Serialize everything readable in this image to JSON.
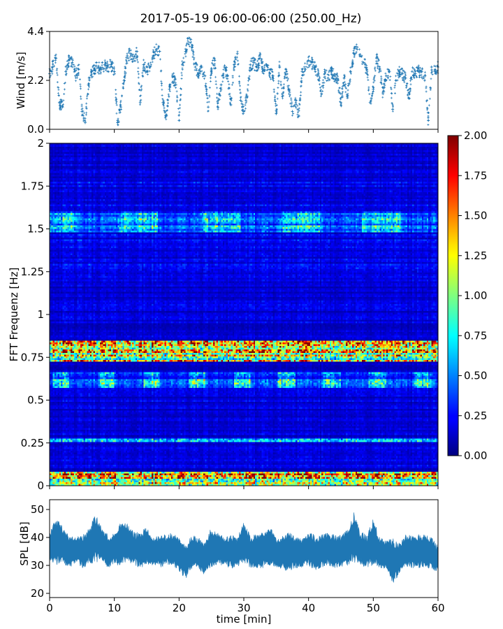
{
  "title": "2017-05-19 06:00-06:00 (250.00_Hz)",
  "chart_data": [
    {
      "type": "scatter",
      "panel": "wind",
      "ylabel": "Wind [m/s]",
      "xlim": [
        0,
        60
      ],
      "ylim": [
        0,
        4.4
      ],
      "yticks": [
        "0.0",
        "2.2",
        "4.4"
      ],
      "ytick_values": [
        0,
        2.2,
        4.4
      ],
      "color": "#1f77b4",
      "marker": "+",
      "series": [
        {
          "x": [
            0,
            0.5,
            1,
            1.5,
            2,
            2.5,
            3,
            3.5,
            4,
            4.5,
            5,
            5.5,
            6,
            6.5,
            7,
            7.5,
            8,
            8.5,
            9,
            9.5,
            10,
            10.5,
            11,
            11.5,
            12,
            12.5,
            13,
            13.5,
            14,
            14.5,
            15,
            15.5,
            16,
            16.5,
            17,
            17.5,
            18,
            18.5,
            19,
            19.5,
            20,
            20.5,
            21,
            21.5,
            22,
            22.5,
            23,
            23.5,
            24,
            24.5,
            25,
            25.5,
            26,
            26.5,
            27,
            27.5,
            28,
            28.5,
            29,
            29.5,
            30,
            30.5,
            31,
            31.5,
            32,
            32.5,
            33,
            33.5,
            34,
            34.5,
            35,
            35.5,
            36,
            36.5,
            37,
            37.5,
            38,
            38.5,
            39,
            39.5,
            40,
            40.5,
            41,
            41.5,
            42,
            42.5,
            43,
            43.5,
            44,
            44.5,
            45,
            45.5,
            46,
            46.5,
            47,
            47.5,
            48,
            48.5,
            49,
            49.5,
            50,
            50.5,
            51,
            51.5,
            52,
            52.5,
            53,
            53.5,
            54,
            54.5,
            55,
            55.5,
            56,
            56.5,
            57,
            57.5,
            58,
            58.5,
            59,
            59.5,
            60
          ],
          "y": [
            2.5,
            2.8,
            3.2,
            1.2,
            1.0,
            2.6,
            3.1,
            3.0,
            2.4,
            2.7,
            0.8,
            0.3,
            2.0,
            2.6,
            2.7,
            2.8,
            2.7,
            2.9,
            2.8,
            2.9,
            2.6,
            0.3,
            1.0,
            2.2,
            3.3,
            3.4,
            3.2,
            3.5,
            1.2,
            2.9,
            2.6,
            2.8,
            3.3,
            3.6,
            3.5,
            1.2,
            0.6,
            1.8,
            2.4,
            2.0,
            0.4,
            2.9,
            3.5,
            4.1,
            3.7,
            2.8,
            2.5,
            2.8,
            2.4,
            1.0,
            2.7,
            3.1,
            1.0,
            2.0,
            2.8,
            2.4,
            1.1,
            2.9,
            3.4,
            1.3,
            0.8,
            1.5,
            2.9,
            3.0,
            2.8,
            3.2,
            2.7,
            2.9,
            2.5,
            2.4,
            0.7,
            2.8,
            1.5,
            2.7,
            1.8,
            0.8,
            1.3,
            0.6,
            2.6,
            2.7,
            3.1,
            3.0,
            2.8,
            2.5,
            1.6,
            2.5,
            2.3,
            2.6,
            2.4,
            2.2,
            1.2,
            2.3,
            1.5,
            2.6,
            3.4,
            3.6,
            3.3,
            3.0,
            2.7,
            1.2,
            1.8,
            3.2,
            2.7,
            1.6,
            2.4,
            2.6,
            0.9,
            2.2,
            2.6,
            2.5,
            2.3,
            1.4,
            2.6,
            2.5,
            2.6,
            2.6,
            2.4,
            0.4,
            2.8,
            2.6,
            2.8
          ]
        }
      ]
    },
    {
      "type": "heatmap",
      "panel": "spectrogram",
      "ylabel": "FFT Frequenz [Hz]",
      "xlim": [
        0,
        60
      ],
      "ylim": [
        0,
        2
      ],
      "yticks": [
        "0",
        "0.25",
        "0.5",
        "0.75",
        "1",
        "1.25",
        "1.5",
        "1.75",
        "2"
      ],
      "ytick_values": [
        0,
        0.25,
        0.5,
        0.75,
        1,
        1.25,
        1.5,
        1.75,
        2
      ],
      "colormap": "jet",
      "colorbar": {
        "range": [
          0,
          2
        ],
        "ticks": [
          "0.00",
          "0.25",
          "0.50",
          "0.75",
          "1.00",
          "1.25",
          "1.50",
          "1.75",
          "2.00"
        ],
        "tick_values": [
          0,
          0.25,
          0.5,
          0.75,
          1,
          1.25,
          1.5,
          1.75,
          2
        ]
      },
      "features": [
        {
          "freq_range": [
            0.0,
            0.08
          ],
          "intensity": 1.4
        },
        {
          "freq_range": [
            0.72,
            0.85
          ],
          "intensity": 1.1
        },
        {
          "freq_range": [
            0.57,
            0.66
          ],
          "intensity": 0.55
        },
        {
          "freq_range": [
            1.48,
            1.6
          ],
          "intensity": 0.45
        },
        {
          "freq_range": [
            0.26,
            0.28
          ],
          "intensity": 0.6
        }
      ]
    },
    {
      "type": "area",
      "panel": "spl",
      "ylabel": "SPL [dB]",
      "xlabel": "time [min]",
      "xlim": [
        0,
        60
      ],
      "ylim": [
        18.5,
        53.5
      ],
      "yticks": [
        "20",
        "30",
        "40",
        "50"
      ],
      "ytick_values": [
        20,
        30,
        40,
        50
      ],
      "xticks": [
        "0",
        "10",
        "20",
        "30",
        "40",
        "50",
        "60"
      ],
      "xtick_values": [
        0,
        10,
        20,
        30,
        40,
        50,
        60
      ],
      "color": "#1f77b4",
      "series": [
        {
          "x": [
            0,
            1,
            2,
            3,
            4,
            5,
            6,
            7,
            8,
            9,
            10,
            11,
            12,
            13,
            14,
            15,
            16,
            17,
            18,
            19,
            20,
            21,
            22,
            23,
            24,
            25,
            26,
            27,
            28,
            29,
            30,
            31,
            32,
            33,
            34,
            35,
            36,
            37,
            38,
            39,
            40,
            41,
            42,
            43,
            44,
            45,
            46,
            47,
            48,
            49,
            50,
            51,
            52,
            53,
            54,
            55,
            56,
            57,
            58,
            59,
            60
          ],
          "upper": [
            42,
            47,
            44,
            41,
            40,
            41,
            43,
            49,
            44,
            41,
            42,
            46,
            45,
            42,
            42,
            44,
            40,
            41,
            41,
            42,
            40,
            37,
            41,
            40,
            38,
            44,
            42,
            40,
            41,
            40,
            46,
            41,
            41,
            42,
            44,
            40,
            41,
            42,
            40,
            40,
            42,
            41,
            41,
            42,
            41,
            41,
            43,
            49,
            42,
            41,
            47,
            40,
            39,
            40,
            38,
            41,
            41,
            41,
            41,
            40,
            37
          ],
          "lower": [
            31,
            30,
            31,
            29,
            31,
            29,
            30,
            31,
            31,
            29,
            30,
            30,
            31,
            30,
            29,
            30,
            30,
            29,
            30,
            30,
            28,
            25,
            29,
            29,
            26,
            29,
            30,
            30,
            29,
            29,
            31,
            29,
            29,
            29,
            30,
            29,
            28,
            28,
            29,
            29,
            30,
            28,
            29,
            30,
            29,
            29,
            30,
            31,
            30,
            29,
            30,
            29,
            28,
            23,
            27,
            29,
            29,
            29,
            29,
            29,
            27
          ]
        }
      ]
    }
  ]
}
